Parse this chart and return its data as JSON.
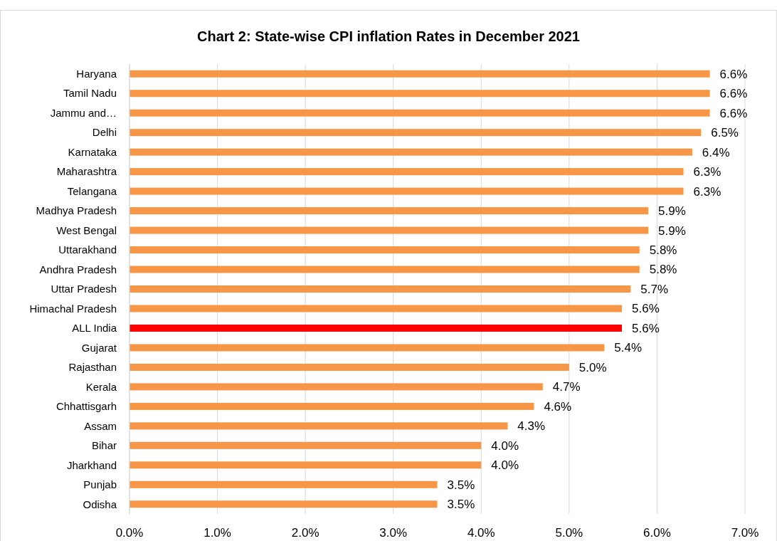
{
  "chart_data": {
    "type": "bar",
    "orientation": "horizontal",
    "title": "Chart 2: State-wise CPI inflation Rates in December 2021",
    "categories": [
      "Haryana",
      "Tamil Nadu",
      "Jammu and…",
      "Delhi",
      "Karnataka",
      "Maharashtra",
      "Telangana",
      "Madhya Pradesh",
      "West Bengal",
      "Uttarakhand",
      "Andhra Pradesh",
      "Uttar Pradesh",
      "Himachal Pradesh",
      "ALL India",
      "Gujarat",
      "Rajasthan",
      "Kerala",
      "Chhattisgarh",
      "Assam",
      "Bihar",
      "Jharkhand",
      "Punjab",
      "Odisha"
    ],
    "values": [
      6.6,
      6.6,
      6.6,
      6.5,
      6.4,
      6.3,
      6.3,
      5.9,
      5.9,
      5.8,
      5.8,
      5.7,
      5.6,
      5.6,
      5.4,
      5.0,
      4.7,
      4.6,
      4.3,
      4.0,
      4.0,
      3.5,
      3.5
    ],
    "value_labels": [
      "6.6%",
      "6.6%",
      "6.6%",
      "6.5%",
      "6.4%",
      "6.3%",
      "6.3%",
      "5.9%",
      "5.9%",
      "5.8%",
      "5.8%",
      "5.7%",
      "5.6%",
      "5.6%",
      "5.4%",
      "5.0%",
      "4.7%",
      "4.6%",
      "4.3%",
      "4.0%",
      "4.0%",
      "3.5%",
      "3.5%"
    ],
    "colors": [
      "#f79646",
      "#f79646",
      "#f79646",
      "#f79646",
      "#f79646",
      "#f79646",
      "#f79646",
      "#f79646",
      "#f79646",
      "#f79646",
      "#f79646",
      "#f79646",
      "#f79646",
      "#ff0000",
      "#f79646",
      "#f79646",
      "#f79646",
      "#f79646",
      "#f79646",
      "#f79646",
      "#f79646",
      "#f79646",
      "#f79646"
    ],
    "xlim": [
      0,
      7
    ],
    "xticks": [
      {
        "value": 0,
        "label": "0.0%"
      },
      {
        "value": 1,
        "label": "1.0%"
      },
      {
        "value": 2,
        "label": "2.0%"
      },
      {
        "value": 3,
        "label": "3.0%"
      },
      {
        "value": 4,
        "label": "4.0%"
      },
      {
        "value": 5,
        "label": "5.0%"
      },
      {
        "value": 6,
        "label": "6.0%"
      },
      {
        "value": 7,
        "label": "7.0%"
      }
    ],
    "grid": "x"
  }
}
